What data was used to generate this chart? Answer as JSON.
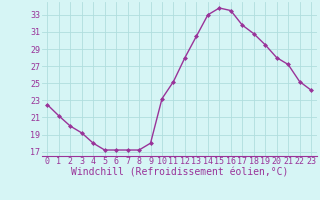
{
  "x": [
    0,
    1,
    2,
    3,
    4,
    5,
    6,
    7,
    8,
    9,
    10,
    11,
    12,
    13,
    14,
    15,
    16,
    17,
    18,
    19,
    20,
    21,
    22,
    23
  ],
  "y": [
    22.5,
    21.2,
    20.0,
    19.2,
    18.0,
    17.2,
    17.2,
    17.2,
    17.2,
    18.0,
    23.2,
    25.2,
    28.0,
    30.5,
    33.0,
    33.8,
    33.5,
    31.8,
    30.8,
    29.5,
    28.0,
    27.2,
    25.2,
    24.2
  ],
  "line_color": "#993399",
  "marker": "D",
  "marker_size": 2,
  "bg_color": "#d6f5f5",
  "grid_color": "#b0dede",
  "xlabel": "Windchill (Refroidissement éolien,°C)",
  "xlabel_color": "#993399",
  "tick_label_color": "#993399",
  "yticks": [
    17,
    19,
    21,
    23,
    25,
    27,
    29,
    31,
    33
  ],
  "xticks": [
    0,
    1,
    2,
    3,
    4,
    5,
    6,
    7,
    8,
    9,
    10,
    11,
    12,
    13,
    14,
    15,
    16,
    17,
    18,
    19,
    20,
    21,
    22,
    23
  ],
  "xlim": [
    -0.5,
    23.5
  ],
  "ylim": [
    16.5,
    34.5
  ],
  "tick_font_size": 6,
  "xlabel_font_size": 7,
  "linewidth": 1.0,
  "spine_color": "#993399"
}
